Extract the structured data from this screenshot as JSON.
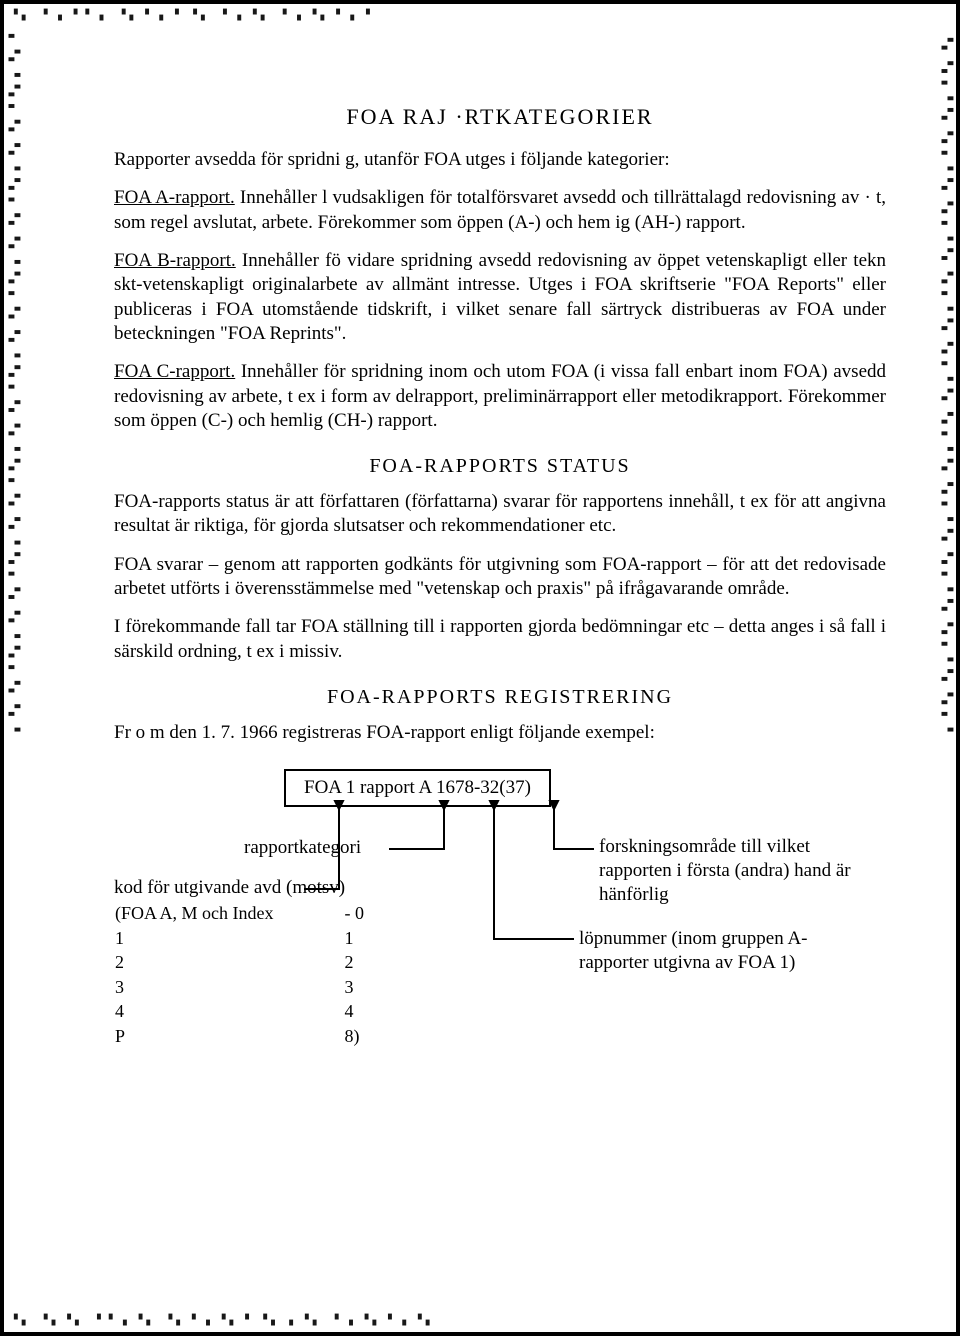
{
  "title1": "FOA RAJ  ·RTKATEGORIER",
  "intro": "Rapporter avsedda för spridni g, utanför FOA utges i följande kategorier:",
  "paraA_label": "FOA A-rapport.",
  "paraA_rest": " Innehåller l  vudsakligen för totalförsvaret avsedd och tillrättalagd redovisning av · t, som regel avslutat, arbete. Förekommer som öppen (A-) och hem ig (AH-) rapport.",
  "paraB_label": "FOA B-rapport.",
  "paraB_rest": " Innehåller fö  vidare spridning avsedd redovisning av öppet vetenskapligt eller tekn skt-vetenskapligt originalarbete av allmänt intresse. Utges i FOA skriftserie \"FOA Reports\" eller publiceras i FOA utomstående tidskrift, i vilket senare fall särtryck distribueras av FOA under beteckningen \"FOA Reprints\".",
  "paraC_label": "FOA C-rapport.",
  "paraC_rest": " Innehåller för spridning inom och utom FOA (i vissa fall enbart inom FOA) avsedd redovisning av arbete, t ex i form av delrapport, preliminärrapport eller metodikrapport. Förekommer som öppen (C-) och hemlig (CH-) rapport.",
  "title2": "FOA-RAPPORTS STATUS",
  "status1": "FOA-rapports status är att författaren (författarna) svarar för rapportens innehåll, t ex för att angivna resultat är riktiga, för gjorda slutsatser och rekommendationer etc.",
  "status2": "FOA svarar – genom att rapporten godkänts för utgivning som FOA-rapport – för att det redovisade arbetet utförts i överensstämmelse med \"vetenskap och praxis\" på ifrågavarande område.",
  "status3": "I förekommande fall tar FOA ställning till i rapporten gjorda bedömningar etc – detta anges i så fall i särskild ordning, t ex i missiv.",
  "title3": "FOA-RAPPORTS REGISTRERING",
  "reg_intro": "Fr o m den 1. 7. 1966 registreras FOA-rapport enligt följande exempel:",
  "diagram": {
    "box_text": "FOA 1 rapport A 1678-32(37)",
    "label_kategori": "rapportkategori",
    "label_kod": "kod för utgivande avd (motsv)",
    "label_lop": "löpnummer (inom gruppen A-rapporter utgivna av FOA 1)",
    "label_forskning": "forskningsområde till vilket rapporten i första (andra) hand är hänförlig",
    "code_rows": [
      [
        "(FOA A, M och Index",
        "- 0"
      ],
      [
        "1",
        "1"
      ],
      [
        "2",
        "2"
      ],
      [
        "3",
        "3"
      ],
      [
        "4",
        "4"
      ],
      [
        "P",
        "8)"
      ]
    ],
    "colors": {
      "line": "#000000",
      "text": "#000000",
      "bg": "#ffffff"
    }
  }
}
